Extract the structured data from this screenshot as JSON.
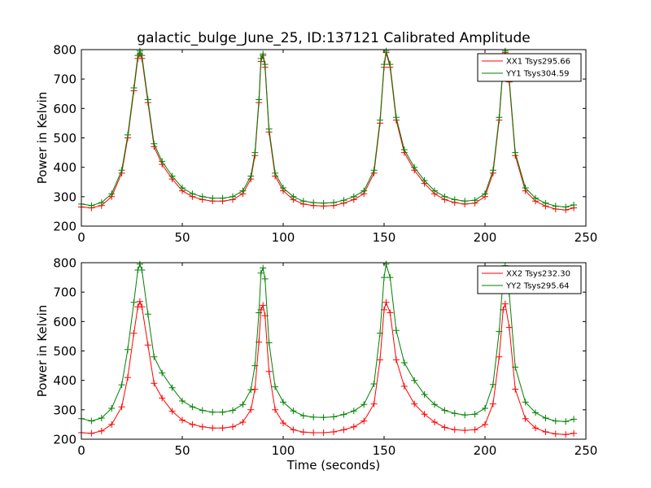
{
  "figure": {
    "title": "galactic_bulge_June_25, ID:137121 Calibrated Amplitude",
    "colors": {
      "xx": "#ff0000",
      "yy": "#008000"
    }
  },
  "chart_data": [
    {
      "type": "line",
      "title": "galactic_bulge_June_25, ID:137121 Calibrated Amplitude",
      "xlabel": "",
      "ylabel": "Power in Kelvin",
      "xlim": [
        0,
        250
      ],
      "ylim": [
        200,
        800
      ],
      "xticks": [
        "0",
        "50",
        "100",
        "150",
        "200",
        "250"
      ],
      "yticks": [
        "200",
        "300",
        "400",
        "500",
        "600",
        "700",
        "800"
      ],
      "grid": false,
      "marker": "+",
      "legend_position": "top-right",
      "x": [
        0,
        5,
        10,
        15,
        20,
        23,
        26,
        28,
        29,
        30,
        33,
        36,
        40,
        45,
        50,
        55,
        60,
        65,
        70,
        75,
        80,
        84,
        86,
        88,
        89,
        90,
        91,
        93,
        96,
        100,
        105,
        110,
        115,
        120,
        125,
        130,
        135,
        140,
        145,
        148,
        150,
        151,
        153,
        156,
        160,
        165,
        170,
        175,
        180,
        185,
        190,
        195,
        200,
        204,
        207,
        209,
        210,
        212,
        215,
        220,
        225,
        230,
        235,
        240,
        244
      ],
      "series": [
        {
          "name": "XX1 Tsys295.66",
          "color": "#ff0000",
          "values": [
            265,
            262,
            270,
            300,
            380,
            500,
            660,
            770,
            785,
            770,
            620,
            470,
            410,
            360,
            320,
            300,
            290,
            285,
            285,
            290,
            310,
            360,
            440,
            620,
            760,
            780,
            740,
            520,
            370,
            320,
            290,
            275,
            270,
            268,
            270,
            278,
            290,
            310,
            380,
            550,
            740,
            790,
            740,
            560,
            450,
            390,
            345,
            310,
            290,
            280,
            275,
            278,
            300,
            380,
            560,
            740,
            790,
            690,
            440,
            320,
            285,
            268,
            258,
            255,
            262
          ]
        },
        {
          "name": "YY1 Tsys304.59",
          "color": "#008000",
          "values": [
            275,
            270,
            280,
            310,
            390,
            510,
            670,
            780,
            795,
            780,
            630,
            480,
            420,
            370,
            330,
            310,
            300,
            295,
            295,
            300,
            320,
            370,
            450,
            630,
            770,
            785,
            750,
            530,
            380,
            330,
            300,
            285,
            280,
            278,
            280,
            288,
            300,
            320,
            390,
            560,
            750,
            795,
            750,
            570,
            460,
            400,
            355,
            320,
            300,
            290,
            285,
            288,
            310,
            390,
            570,
            750,
            795,
            700,
            450,
            330,
            295,
            278,
            268,
            265,
            272
          ]
        }
      ]
    },
    {
      "type": "line",
      "title": "",
      "xlabel": "Time (seconds)",
      "ylabel": "Power in Kelvin",
      "xlim": [
        0,
        250
      ],
      "ylim": [
        200,
        800
      ],
      "xticks": [
        "0",
        "50",
        "100",
        "150",
        "200",
        "250"
      ],
      "yticks": [
        "200",
        "300",
        "400",
        "500",
        "600",
        "700",
        "800"
      ],
      "grid": false,
      "marker": "+",
      "legend_position": "top-right",
      "x": [
        0,
        5,
        10,
        15,
        20,
        23,
        26,
        28,
        29,
        30,
        33,
        36,
        40,
        45,
        50,
        55,
        60,
        65,
        70,
        75,
        80,
        84,
        86,
        88,
        89,
        90,
        91,
        93,
        96,
        100,
        105,
        110,
        115,
        120,
        125,
        130,
        135,
        140,
        145,
        148,
        150,
        151,
        153,
        156,
        160,
        165,
        170,
        175,
        180,
        185,
        190,
        195,
        200,
        204,
        207,
        209,
        210,
        212,
        215,
        220,
        225,
        230,
        235,
        240,
        244
      ],
      "series": [
        {
          "name": "XX2 Tsys232.30",
          "color": "#ff0000",
          "values": [
            222,
            220,
            228,
            250,
            310,
            410,
            560,
            650,
            668,
            650,
            520,
            390,
            340,
            295,
            265,
            250,
            242,
            238,
            238,
            242,
            258,
            300,
            370,
            530,
            640,
            655,
            620,
            430,
            300,
            255,
            232,
            224,
            222,
            222,
            225,
            232,
            242,
            262,
            320,
            470,
            640,
            665,
            630,
            470,
            380,
            320,
            285,
            258,
            240,
            232,
            230,
            232,
            250,
            320,
            480,
            640,
            660,
            580,
            370,
            270,
            238,
            225,
            218,
            216,
            220
          ]
        },
        {
          "name": "YY2 Tsys295.64",
          "color": "#008000",
          "values": [
            270,
            262,
            272,
            305,
            385,
            505,
            665,
            775,
            795,
            775,
            625,
            480,
            425,
            375,
            330,
            310,
            298,
            292,
            292,
            298,
            318,
            368,
            450,
            630,
            765,
            782,
            745,
            528,
            378,
            326,
            296,
            280,
            275,
            274,
            276,
            284,
            296,
            318,
            388,
            560,
            750,
            795,
            750,
            570,
            460,
            400,
            352,
            318,
            298,
            288,
            282,
            285,
            305,
            386,
            566,
            748,
            790,
            695,
            445,
            326,
            290,
            272,
            262,
            260,
            268
          ]
        }
      ]
    }
  ]
}
